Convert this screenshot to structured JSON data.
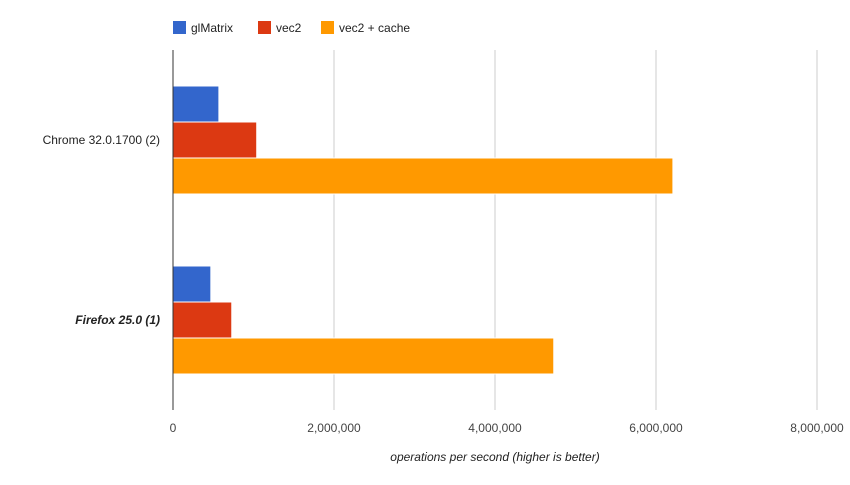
{
  "chart_data": {
    "type": "bar",
    "orientation": "horizontal",
    "categories": [
      "Chrome 32.0.1700 (2)",
      "Firefox 25.0 (1)"
    ],
    "category_emphasis": [
      "normal",
      "bold-italic"
    ],
    "series": [
      {
        "name": "glMatrix",
        "color": "#3366cc",
        "values": [
          570000,
          470000
        ]
      },
      {
        "name": "vec2",
        "color": "#dc3912",
        "values": [
          1040000,
          730000
        ]
      },
      {
        "name": "vec2 + cache",
        "color": "#ff9900",
        "values": [
          6210000,
          4730000
        ]
      }
    ],
    "xlim": [
      0,
      8000000
    ],
    "x_ticks": [
      0,
      2000000,
      4000000,
      6000000,
      8000000
    ],
    "x_tick_labels": [
      "0",
      "2,000,000",
      "4,000,000",
      "6,000,000",
      "8,000,000"
    ],
    "xlabel": "operations per second (higher is better)",
    "ylabel": "",
    "title": "",
    "grid": true,
    "legend_position": "top-left"
  }
}
